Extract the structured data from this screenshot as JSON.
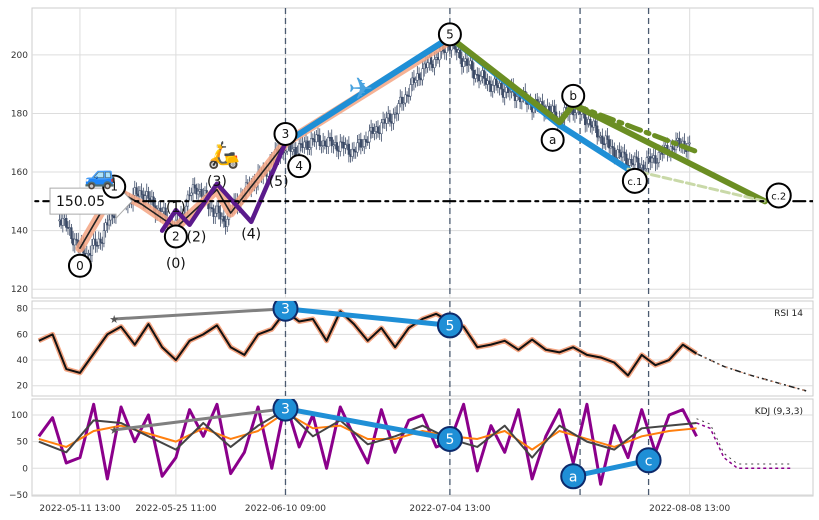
{
  "chart_data": [
    {
      "type": "candlestick",
      "panel": "price",
      "ylim": [
        117,
        216
      ],
      "yticks": [
        120,
        140,
        160,
        180,
        200
      ],
      "ytick_labels": [
        "120",
        "140",
        "160",
        "180",
        "200"
      ],
      "x_dates": [
        "2022-05-11 13:00",
        "2022-05-25 11:00",
        "2022-06-10 09:00",
        "2022-07-04 13:00",
        "2022-08-08 13:00"
      ],
      "xlim_days": [
        -7,
        107
      ],
      "x_days": [
        0,
        14,
        30,
        54,
        89
      ],
      "grid": true,
      "reference_price_label": "150.05",
      "reference_price": 150.05,
      "close_path": [
        [
          -3,
          145
        ],
        [
          0,
          134
        ],
        [
          1,
          132
        ],
        [
          3,
          137
        ],
        [
          5,
          147
        ],
        [
          6,
          152
        ],
        [
          7,
          150
        ],
        [
          8,
          152
        ],
        [
          9,
          153
        ],
        [
          10,
          151
        ],
        [
          11,
          148
        ],
        [
          12,
          146
        ],
        [
          13,
          142
        ],
        [
          14,
          141
        ],
        [
          15,
          146
        ],
        [
          16,
          152
        ],
        [
          17,
          155
        ],
        [
          18,
          152
        ],
        [
          19,
          148
        ],
        [
          20,
          146
        ],
        [
          21,
          143
        ],
        [
          22,
          147
        ],
        [
          23,
          150
        ],
        [
          24,
          153
        ],
        [
          25,
          156
        ],
        [
          27,
          160
        ],
        [
          28,
          164
        ],
        [
          29,
          167
        ],
        [
          30,
          168
        ],
        [
          32,
          168
        ],
        [
          34,
          171
        ],
        [
          36,
          170
        ],
        [
          38,
          169
        ],
        [
          40,
          167
        ],
        [
          42,
          172
        ],
        [
          44,
          176
        ],
        [
          46,
          180
        ],
        [
          48,
          188
        ],
        [
          50,
          195
        ],
        [
          52,
          199
        ],
        [
          54,
          204
        ],
        [
          56,
          198
        ],
        [
          58,
          193
        ],
        [
          60,
          190
        ],
        [
          62,
          188
        ],
        [
          64,
          186
        ],
        [
          66,
          183
        ],
        [
          68,
          182
        ],
        [
          70,
          178
        ],
        [
          71,
          180
        ],
        [
          72,
          182
        ],
        [
          74,
          178
        ],
        [
          76,
          172
        ],
        [
          78,
          167
        ],
        [
          80,
          164
        ],
        [
          82,
          162
        ],
        [
          84,
          165
        ],
        [
          86,
          168
        ],
        [
          88,
          170
        ],
        [
          89,
          168
        ]
      ],
      "wave_lines": [
        {
          "name": "salmon",
          "color": "#f4a582",
          "points": [
            [
              0,
              134
            ],
            [
              5,
              154
            ],
            [
              9,
              149
            ],
            [
              14,
              141
            ],
            [
              20,
              154
            ],
            [
              22,
              146
            ],
            [
              30,
              170
            ],
            [
              54,
              205
            ]
          ]
        },
        {
          "name": "black",
          "color": "#222222",
          "points": [
            [
              0,
              134
            ],
            [
              5,
              154
            ],
            [
              9,
              149
            ],
            [
              14,
              141
            ],
            [
              20,
              154
            ],
            [
              22,
              146
            ],
            [
              30,
              170
            ],
            [
              54,
              205
            ]
          ]
        },
        {
          "name": "purple",
          "color": "#5b1a8c",
          "points": [
            [
              12,
              140
            ],
            [
              14,
              147
            ],
            [
              16,
              142
            ],
            [
              20,
              156
            ],
            [
              25,
              143
            ],
            [
              30,
              170
            ]
          ]
        },
        {
          "name": "blue",
          "color": "#1f8fd6",
          "points": [
            [
              30,
              170
            ],
            [
              54,
              206
            ],
            [
              70,
              176
            ],
            [
              80,
              161
            ]
          ]
        },
        {
          "name": "green",
          "color": "#6b8e23",
          "points": [
            [
              54,
              206
            ],
            [
              70,
              177
            ],
            [
              72,
              183
            ],
            [
              100,
              150
            ]
          ]
        },
        {
          "name": "green-dash",
          "color": "#6b8e23",
          "points": [
            [
              72,
              183
            ],
            [
              90,
              167
            ]
          ]
        },
        {
          "name": "light-green",
          "color": "#c9d9a8",
          "points": [
            [
              80,
              161
            ],
            [
              100,
              150
            ]
          ]
        },
        {
          "name": "hline-black",
          "color": "#000000",
          "points": [
            [
              -9,
              150.05
            ],
            [
              109,
              150.05
            ]
          ]
        }
      ],
      "vlines_days": [
        30,
        54,
        73,
        83
      ],
      "wave_labels": [
        {
          "text": "0",
          "x": 0,
          "y": 128,
          "circle": true
        },
        {
          "text": "1",
          "x": 5,
          "y": 155,
          "circle": true
        },
        {
          "text": "2",
          "x": 14,
          "y": 138,
          "circle": true
        },
        {
          "text": "(2)",
          "x": 17,
          "y": 138,
          "circle": false
        },
        {
          "text": "(0)",
          "x": 14,
          "y": 129,
          "circle": false
        },
        {
          "text": "(1)",
          "x": 14,
          "y": 148,
          "circle": false
        },
        {
          "text": "(3)",
          "x": 20,
          "y": 157,
          "circle": false
        },
        {
          "text": "(4)",
          "x": 25,
          "y": 139,
          "circle": false
        },
        {
          "text": "3",
          "x": 30,
          "y": 173,
          "circle": true
        },
        {
          "text": "4",
          "x": 32,
          "y": 162,
          "circle": true
        },
        {
          "text": "(5)",
          "x": 29,
          "y": 157,
          "circle": false
        },
        {
          "text": "5",
          "x": 54,
          "y": 207,
          "circle": true
        },
        {
          "text": "a",
          "x": 69,
          "y": 171,
          "circle": true
        },
        {
          "text": "b",
          "x": 72,
          "y": 186,
          "circle": true
        },
        {
          "text": "c.1",
          "x": 81,
          "y": 157,
          "circle": true
        },
        {
          "text": "c.2",
          "x": 102,
          "y": 152,
          "circle": true
        }
      ],
      "emoji": [
        {
          "name": "car",
          "glyph": "🚙",
          "x": 3,
          "y": 156
        },
        {
          "name": "scooter",
          "glyph": "🛵",
          "x": 21,
          "y": 163
        },
        {
          "name": "airplane",
          "glyph": "✈",
          "x": 41,
          "y": 185
        }
      ]
    },
    {
      "type": "line",
      "panel": "rsi",
      "title": "RSI 14",
      "ylim": [
        12,
        86
      ],
      "yticks": [
        20,
        40,
        60,
        80
      ],
      "ytick_labels": [
        "20",
        "40",
        "60",
        "80"
      ],
      "series": [
        {
          "values_x": [
            -6,
            -4,
            -2,
            0,
            2,
            4,
            6,
            8,
            10,
            12,
            14,
            16,
            18,
            20,
            22,
            24,
            26,
            28,
            30,
            32,
            34,
            36,
            38,
            40,
            42,
            44,
            46,
            48,
            50,
            52,
            54,
            56,
            58,
            60,
            62,
            64,
            66,
            68,
            70,
            72,
            74,
            76,
            78,
            80,
            82,
            84,
            86,
            88,
            90
          ],
          "values_y": [
            55,
            60,
            33,
            30,
            45,
            60,
            66,
            52,
            68,
            50,
            40,
            55,
            60,
            67,
            50,
            44,
            60,
            64,
            78,
            70,
            72,
            55,
            78,
            68,
            55,
            65,
            50,
            65,
            72,
            76,
            70,
            66,
            50,
            52,
            55,
            48,
            56,
            48,
            46,
            50,
            44,
            42,
            38,
            28,
            44,
            36,
            40,
            52,
            45
          ]
        }
      ],
      "projection": {
        "color": "#222222",
        "values_x": [
          90,
          94,
          98,
          102,
          106
        ],
        "values_y": [
          45,
          35,
          28,
          22,
          16
        ]
      },
      "divergence": [
        {
          "color": "#808080",
          "points": [
            [
              5,
              72
            ],
            [
              30,
              80
            ]
          ]
        },
        {
          "color": "#1f8fd6",
          "points": [
            [
              30,
              80
            ],
            [
              54,
              67
            ]
          ]
        }
      ],
      "markers": [
        {
          "text": "3",
          "x": 30,
          "y": 80
        },
        {
          "text": "5",
          "x": 54,
          "y": 67
        }
      ]
    },
    {
      "type": "line",
      "panel": "kdj",
      "title": "KDJ (9,3,3)",
      "ylim": [
        -52,
        130
      ],
      "yticks": [
        -50,
        0,
        50,
        100
      ],
      "ytick_labels": [
        "−50",
        "0",
        "50",
        "100"
      ],
      "series": [
        {
          "name": "J",
          "color": "#8b008b",
          "values_x": [
            -6,
            -4,
            -2,
            0,
            2,
            4,
            6,
            8,
            10,
            12,
            14,
            16,
            18,
            20,
            22,
            24,
            26,
            28,
            30,
            32,
            34,
            36,
            38,
            40,
            42,
            44,
            46,
            48,
            50,
            52,
            54,
            56,
            58,
            60,
            62,
            64,
            66,
            68,
            70,
            72,
            74,
            76,
            78,
            80,
            82,
            84,
            86,
            88,
            90
          ],
          "values_y": [
            60,
            95,
            10,
            20,
            120,
            -20,
            115,
            50,
            100,
            -15,
            20,
            110,
            60,
            120,
            -10,
            30,
            115,
            0,
            125,
            40,
            100,
            0,
            115,
            60,
            10,
            110,
            30,
            90,
            100,
            40,
            50,
            120,
            -5,
            80,
            30,
            110,
            -20,
            60,
            110,
            10,
            120,
            -30,
            80,
            20,
            110,
            30,
            100,
            110,
            60
          ]
        },
        {
          "name": "D",
          "color": "#ff7f0e",
          "values_x": [
            -6,
            -2,
            2,
            6,
            10,
            14,
            18,
            22,
            26,
            30,
            34,
            38,
            42,
            46,
            50,
            54,
            58,
            62,
            66,
            70,
            74,
            78,
            82,
            86,
            90
          ],
          "values_y": [
            55,
            40,
            70,
            80,
            65,
            50,
            75,
            55,
            70,
            105,
            75,
            80,
            55,
            55,
            70,
            60,
            55,
            70,
            35,
            70,
            55,
            40,
            60,
            70,
            75
          ]
        },
        {
          "name": "K",
          "color": "#444444",
          "values_x": [
            -6,
            -2,
            2,
            6,
            10,
            14,
            18,
            22,
            26,
            30,
            34,
            38,
            42,
            46,
            50,
            54,
            58,
            62,
            66,
            70,
            74,
            78,
            82,
            86,
            90
          ],
          "values_y": [
            50,
            30,
            90,
            85,
            60,
            35,
            85,
            40,
            80,
            110,
            60,
            90,
            45,
            60,
            80,
            55,
            40,
            80,
            20,
            80,
            50,
            35,
            75,
            80,
            85
          ]
        }
      ],
      "projection": {
        "values_x": [
          90,
          92,
          94,
          96,
          98,
          100,
          104
        ],
        "values_y": [
          85,
          75,
          20,
          0,
          0,
          0,
          0
        ]
      },
      "divergence": [
        {
          "color": "#808080",
          "points": [
            [
              5,
              72
            ],
            [
              30,
              112
            ]
          ]
        },
        {
          "color": "#1f8fd6",
          "points": [
            [
              30,
              112
            ],
            [
              54,
              55
            ]
          ]
        },
        {
          "color": "#1f8fd6",
          "points": [
            [
              72,
              -15
            ],
            [
              83,
              15
            ]
          ]
        }
      ],
      "markers": [
        {
          "text": "3",
          "x": 30,
          "y": 112
        },
        {
          "text": "5",
          "x": 54,
          "y": 55
        },
        {
          "text": "a",
          "x": 72,
          "y": -15
        },
        {
          "text": "c",
          "x": 83,
          "y": 15
        }
      ]
    }
  ],
  "x_tick_labels": [
    "2022-05-11 13:00",
    "2022-05-25 11:00",
    "2022-06-10 09:00",
    "2022-07-04 13:00",
    "2022-08-08 13:00"
  ]
}
